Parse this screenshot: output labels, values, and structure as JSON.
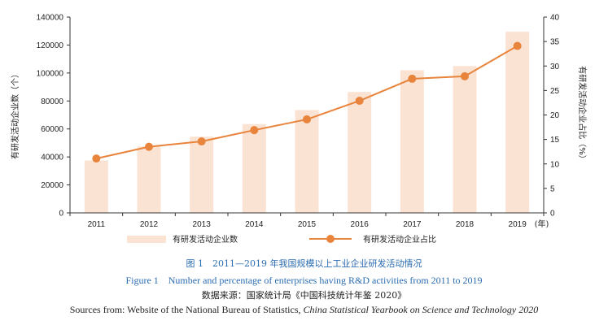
{
  "chart_data": {
    "type": "bar",
    "categories": [
      "2011",
      "2012",
      "2013",
      "2014",
      "2015",
      "2016",
      "2017",
      "2018",
      "2019"
    ],
    "x_unit_suffix": "(年)",
    "series": [
      {
        "name": "有研发活动企业数",
        "type": "bar",
        "axis": "left",
        "color": "#fbe3d3",
        "values": [
          37500,
          47500,
          54500,
          63500,
          73500,
          86500,
          102000,
          105000,
          129500
        ]
      },
      {
        "name": "有研发活动企业占比",
        "type": "line",
        "axis": "right",
        "color": "#e8843c",
        "values": [
          11.1,
          13.5,
          14.6,
          16.9,
          19.1,
          22.9,
          27.4,
          27.9,
          34.1
        ]
      }
    ],
    "y_left": {
      "label": "有研发活动企业数（个）",
      "ylim": [
        0,
        140000
      ],
      "ticks": [
        "0",
        "20000",
        "40000",
        "60000",
        "80000",
        "100000",
        "120000",
        "140000"
      ]
    },
    "y_right": {
      "label": "有研发活动企业占比（%）",
      "ylim": [
        0,
        40
      ],
      "ticks": [
        "0",
        "5",
        "10",
        "15",
        "20",
        "25",
        "30",
        "35",
        "40"
      ]
    },
    "grid": false,
    "legend_position": "bottom"
  },
  "captions": {
    "title_cn": "图 1　2011—2019 年我国规模以上工业企业研发活动情况",
    "title_en": "Figure 1　Number and percentage of enterprises having R&D activities from 2011 to 2019",
    "source_cn": "数据来源：国家统计局《中国科技统计年鉴 2020》",
    "source_en_prefix": "Sources from: Website of the National Bureau of Statistics, ",
    "source_en_italic": "China Statistical Yearbook on Science and Technology 2020"
  }
}
